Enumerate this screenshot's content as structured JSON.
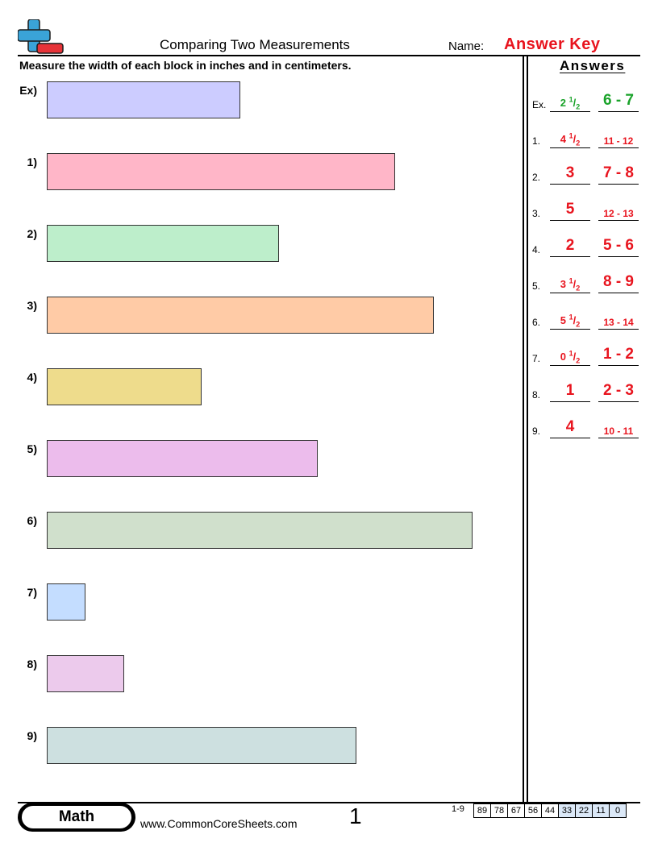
{
  "header": {
    "title": "Comparing Two Measurements",
    "name_label": "Name:",
    "answer_key": "Answer Key",
    "instructions": "Measure the width of each block in inches and in centimeters."
  },
  "answers_heading": "Answers",
  "problems": [
    {
      "label": "Ex)",
      "color": "#ccccff",
      "width_in": 2.5
    },
    {
      "label": "1)",
      "color": "#ffb6c8",
      "width_in": 4.5
    },
    {
      "label": "2)",
      "color": "#bdeecb",
      "width_in": 3
    },
    {
      "label": "3)",
      "color": "#ffcba6",
      "width_in": 5
    },
    {
      "label": "4)",
      "color": "#eedc8c",
      "width_in": 2
    },
    {
      "label": "5)",
      "color": "#ecbcec",
      "width_in": 3.5
    },
    {
      "label": "6)",
      "color": "#d0e0cc",
      "width_in": 5.5
    },
    {
      "label": "7)",
      "color": "#c4ddff",
      "width_in": 0.5
    },
    {
      "label": "8)",
      "color": "#eccaec",
      "width_in": 1
    },
    {
      "label": "9)",
      "color": "#cde0e0",
      "width_in": 4
    }
  ],
  "answers": [
    {
      "label": "Ex.",
      "whole": "2",
      "num": "1",
      "den": "2",
      "cm": "6 - 7",
      "cm_size": "big",
      "color": "#1aa32a"
    },
    {
      "label": "1.",
      "whole": "4",
      "num": "1",
      "den": "2",
      "cm": "11 - 12",
      "cm_size": "small",
      "color": "#e8141e"
    },
    {
      "label": "2.",
      "whole": "3",
      "num": "",
      "den": "",
      "cm": "7 - 8",
      "cm_size": "big",
      "color": "#e8141e"
    },
    {
      "label": "3.",
      "whole": "5",
      "num": "",
      "den": "",
      "cm": "12 - 13",
      "cm_size": "small",
      "color": "#e8141e"
    },
    {
      "label": "4.",
      "whole": "2",
      "num": "",
      "den": "",
      "cm": "5 - 6",
      "cm_size": "big",
      "color": "#e8141e"
    },
    {
      "label": "5.",
      "whole": "3",
      "num": "1",
      "den": "2",
      "cm": "8 - 9",
      "cm_size": "big",
      "color": "#e8141e"
    },
    {
      "label": "6.",
      "whole": "5",
      "num": "1",
      "den": "2",
      "cm": "13 - 14",
      "cm_size": "small",
      "color": "#e8141e"
    },
    {
      "label": "7.",
      "whole": "0",
      "num": "1",
      "den": "2",
      "cm": "1 - 2",
      "cm_size": "big",
      "color": "#e8141e"
    },
    {
      "label": "8.",
      "whole": "1",
      "num": "",
      "den": "",
      "cm": "2 - 3",
      "cm_size": "big",
      "color": "#e8141e"
    },
    {
      "label": "9.",
      "whole": "4",
      "num": "",
      "den": "",
      "cm": "10 - 11",
      "cm_size": "small",
      "color": "#e8141e"
    }
  ],
  "footer": {
    "subject": "Math",
    "site": "www.CommonCoreSheets.com",
    "page": "1",
    "score_label": "1-9",
    "scores": [
      "89",
      "78",
      "67",
      "56",
      "44",
      "33",
      "22",
      "11",
      "0"
    ]
  },
  "logo_icon": "plus-minus-logo-icon"
}
